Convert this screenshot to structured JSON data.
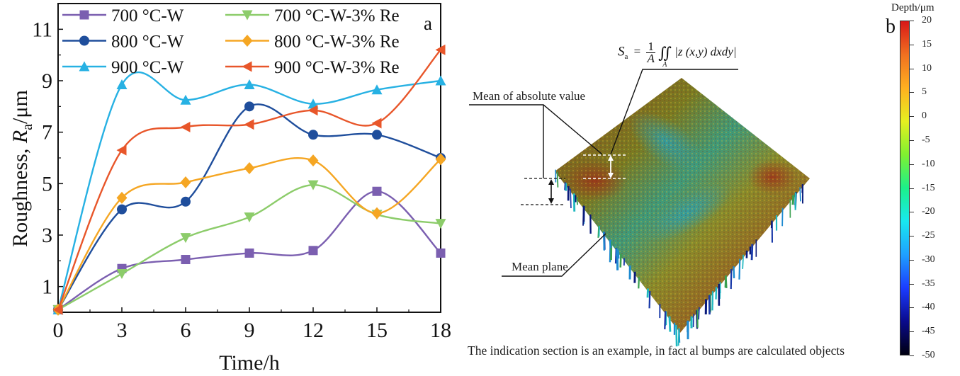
{
  "chart_data": {
    "type": "line",
    "panel_label": "a",
    "title": "",
    "xlabel": "Time/h",
    "ylabel_prefix": "Roughness, ",
    "ylabel_symbol": "R",
    "ylabel_sub": "a",
    "ylabel_unit": "/μm",
    "x": [
      0,
      3,
      6,
      9,
      12,
      15,
      18
    ],
    "xlim": [
      0,
      18
    ],
    "ylim": [
      0,
      12
    ],
    "xticks": [
      "0",
      "3",
      "6",
      "9",
      "12",
      "15",
      "18"
    ],
    "yticks": [
      "1",
      "3",
      "5",
      "7",
      "9",
      "11"
    ],
    "grid": false,
    "legend_position": "top",
    "series": [
      {
        "name": "700 °C-W",
        "color": "#7b5fb0",
        "marker": "square",
        "values": [
          0.1,
          1.7,
          2.05,
          2.3,
          2.4,
          4.7,
          2.3
        ]
      },
      {
        "name": "800 °C-W",
        "color": "#1f4e9c",
        "marker": "circle",
        "values": [
          0.1,
          4.0,
          4.3,
          8.0,
          6.9,
          6.9,
          6.0
        ]
      },
      {
        "name": "900 °C-W",
        "color": "#27b1e3",
        "marker": "triangle-up",
        "values": [
          0.1,
          8.85,
          8.25,
          8.85,
          8.1,
          8.65,
          9.0
        ]
      },
      {
        "name": "700 °C-W-3% Re",
        "color": "#8ccc6a",
        "marker": "triangle-down",
        "values": [
          0.1,
          1.5,
          2.9,
          3.7,
          4.95,
          3.8,
          3.45
        ]
      },
      {
        "name": "800 °C-W-3% Re",
        "color": "#f5a623",
        "marker": "diamond",
        "values": [
          0.1,
          4.45,
          5.05,
          5.6,
          5.9,
          3.85,
          5.95
        ]
      },
      {
        "name": "900 °C-W-3% Re",
        "color": "#e8562a",
        "marker": "triangle-left",
        "values": [
          0.1,
          6.3,
          7.2,
          7.3,
          7.85,
          7.35,
          10.2
        ]
      }
    ]
  },
  "panel_b": {
    "panel_label": "b",
    "formula": {
      "lhs": "S",
      "lhs_sub": "a",
      "equals": "=",
      "num": "1",
      "den": "A",
      "integral": "∬",
      "int_sub": "A",
      "integrand": "|z (x,y) dxdy|"
    },
    "label_mean_abs": "Mean of absolute value",
    "label_mean_plane": "Mean plane",
    "caption": "The indication section is an example, in fact al bumps are calculated objects",
    "colorbar": {
      "title": "Depth/μm",
      "ticks": [
        "20",
        "15",
        "10",
        "5",
        "0",
        "-5",
        "-10",
        "-15",
        "-20",
        "-25",
        "-30",
        "-35",
        "-40",
        "-45",
        "-50"
      ],
      "range": [
        -50,
        20
      ],
      "colors": [
        "#000010",
        "#0a0a8c",
        "#1b3cff",
        "#1fa0ff",
        "#18e8f0",
        "#1cf08a",
        "#80f030",
        "#e6f020",
        "#ffb020",
        "#f07020",
        "#d81818"
      ]
    }
  }
}
